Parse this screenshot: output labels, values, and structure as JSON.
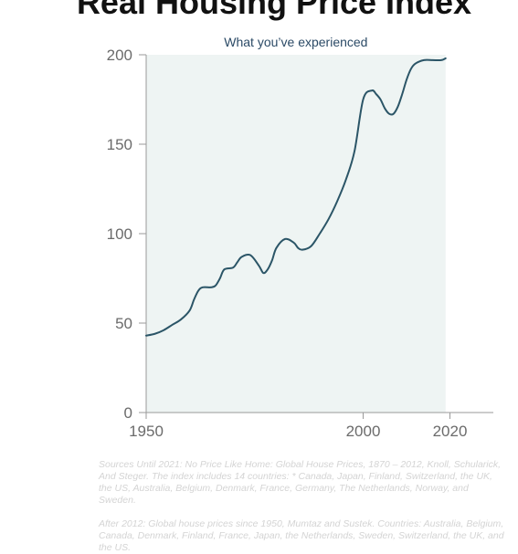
{
  "title": "Real Housing Price Index",
  "chart_data": {
    "type": "line",
    "title": "Real Housing Price Index",
    "xlabel": "",
    "ylabel": "",
    "xlim": [
      1950,
      2030
    ],
    "ylim": [
      0,
      200
    ],
    "x_ticks": [
      1950,
      2000,
      2020
    ],
    "y_ticks": [
      0,
      50,
      100,
      150,
      200
    ],
    "highlight": {
      "label": "What you’ve experienced",
      "x_range": [
        1950,
        2019
      ],
      "color": "#eef4f3"
    },
    "grid": false,
    "line_color": "#2b5567",
    "series": [
      {
        "x": [
          1950,
          1952,
          1954,
          1956,
          1958,
          1960,
          1961,
          1962,
          1963,
          1965,
          1966,
          1967,
          1968,
          1970,
          1971,
          1972,
          1974,
          1976,
          1977,
          1978,
          1979,
          1980,
          1982,
          1984,
          1985,
          1986,
          1988,
          1990,
          1992,
          1994,
          1996,
          1998,
          2000,
          2002,
          2003,
          2004,
          2005,
          2006,
          2007,
          2008,
          2009,
          2010,
          2011,
          2012,
          2014,
          2016,
          2018,
          2019
        ],
        "y": [
          43,
          44,
          46,
          49,
          52,
          57,
          63,
          68,
          70,
          70,
          71,
          75,
          80,
          81,
          84,
          87,
          88,
          82,
          78,
          80,
          85,
          92,
          97,
          95,
          92,
          91,
          93,
          100,
          108,
          118,
          130,
          146,
          175,
          180,
          178,
          175,
          170,
          167,
          167,
          171,
          178,
          186,
          192,
          195,
          197,
          197,
          197,
          198
        ]
      }
    ]
  },
  "notes": [
    "Sources Until 2021: No Price Like Home: Global House Prices, 1870 – 2012, Knoll, Schularick, And Steger. The index includes 14 countries: * Canada, Japan, Finland, Switzerland, the UK, the US, Australia, Belgium, Denmark, France, Germany, The Netherlands, Norway, and Sweden.",
    "After 2012: Global house prices since 1950, Mumtaz and Sustek. Countries: Australia, Belgium, Canada, Denmark, Finland, France, Japan, the Netherlands, Sweden, Switzerland, the UK, and the US."
  ],
  "colors": {
    "axis": "#9a9a9a",
    "tick_text": "#6b6b6b",
    "band": "#eef4f3",
    "line": "#2b5567"
  }
}
